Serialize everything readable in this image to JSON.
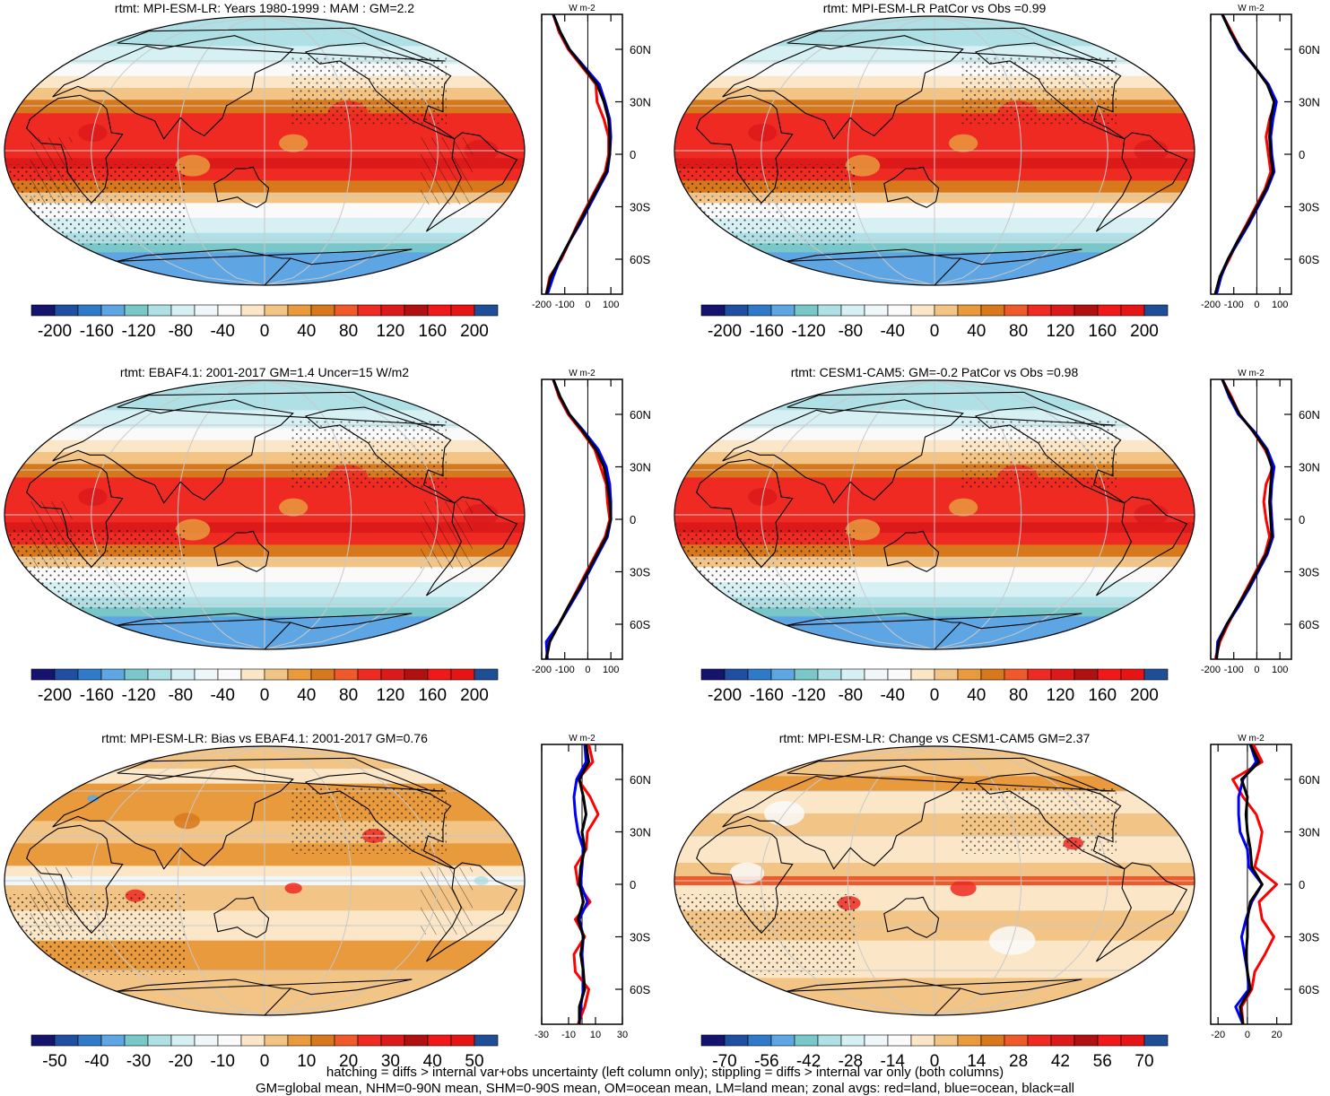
{
  "figure": {
    "footer_lines": [
      "hatching = diffs > internal var+obs uncertainty (left column only); stippling = diffs > internal var only (both columns)",
      "GM=global mean, NHM=0-90N mean, SHM=0-90S mean, OM=ocean mean, LM=land mean; zonal avgs: red=land, blue=ocean, black=all"
    ],
    "colors": {
      "land_line": "#ff0000",
      "ocean_line": "#0000ff",
      "all_line": "#000000",
      "graticule": "#c8c8c8"
    }
  },
  "chart_data": [
    {
      "type": "heatmap",
      "title": "rtmt: MPI-ESM-LR: Years 1980-1999 : MAM : GM=2.2",
      "map_style": "mean",
      "colorbar": {
        "tick_labels": [
          "-200",
          "-160",
          "-120",
          "-80",
          "-40",
          "0",
          "40",
          "80",
          "120",
          "160",
          "200"
        ]
      },
      "zonal": {
        "unit": "W m-2",
        "xlim": [
          -200,
          150
        ],
        "xticks": [
          "-200",
          "-100",
          "0",
          "100"
        ],
        "yticks": [
          "60N",
          "30N",
          "0",
          "30S",
          "60S"
        ],
        "lat": [
          80,
          70,
          60,
          50,
          40,
          30,
          20,
          10,
          0,
          -10,
          -20,
          -30,
          -40,
          -50,
          -60,
          -70,
          -80
        ],
        "all": [
          -150,
          -120,
          -80,
          -20,
          40,
          70,
          90,
          95,
          95,
          80,
          40,
          0,
          -40,
          -80,
          -120,
          -160,
          -180
        ],
        "land": [
          -150,
          -125,
          -85,
          -25,
          35,
          40,
          70,
          90,
          90,
          75,
          35,
          -5,
          -45,
          -80,
          -115,
          -165,
          -180
        ],
        "ocean": [
          -150,
          -120,
          -80,
          -15,
          50,
          75,
          95,
          100,
          95,
          85,
          45,
          5,
          -35,
          -80,
          -120,
          -150,
          -175
        ]
      }
    },
    {
      "type": "heatmap",
      "title": "rtmt: MPI-ESM-LR PatCor vs Obs =0.99",
      "map_style": "mean",
      "colorbar": {
        "tick_labels": [
          "-200",
          "-160",
          "-120",
          "-80",
          "-40",
          "0",
          "40",
          "80",
          "120",
          "160",
          "200"
        ]
      },
      "zonal": {
        "unit": "W m-2",
        "xlim": [
          -200,
          150
        ],
        "xticks": [
          "-200",
          "-100",
          "0",
          "100"
        ],
        "yticks": [
          "60N",
          "30N",
          "0",
          "30S",
          "60S"
        ],
        "lat": [
          80,
          70,
          60,
          50,
          40,
          30,
          20,
          10,
          0,
          -10,
          -20,
          -30,
          -40,
          -50,
          -60,
          -70,
          -80
        ],
        "all": [
          -150,
          -115,
          -70,
          -10,
          45,
          75,
          60,
          55,
          60,
          70,
          40,
          0,
          -40,
          -85,
          -125,
          -160,
          -180
        ],
        "land": [
          -150,
          -110,
          -70,
          -10,
          45,
          80,
          55,
          40,
          50,
          60,
          35,
          -5,
          -45,
          -85,
          -120,
          -160,
          -180
        ],
        "ocean": [
          -150,
          -115,
          -75,
          -10,
          50,
          85,
          70,
          60,
          65,
          75,
          45,
          5,
          -35,
          -80,
          -125,
          -155,
          -175
        ]
      }
    },
    {
      "type": "heatmap",
      "title": "rtmt: EBAF4.1: 2001-2017 GM=1.4 Uncer=15 W/m2",
      "map_style": "mean",
      "colorbar": {
        "tick_labels": [
          "-200",
          "-160",
          "-120",
          "-80",
          "-40",
          "0",
          "40",
          "80",
          "120",
          "160",
          "200"
        ]
      },
      "zonal": {
        "unit": "W m-2",
        "xlim": [
          -200,
          150
        ],
        "xticks": [
          "-200",
          "-100",
          "0",
          "100"
        ],
        "yticks": [
          "60N",
          "30N",
          "0",
          "30S",
          "60S"
        ],
        "lat": [
          80,
          70,
          60,
          50,
          40,
          30,
          20,
          10,
          0,
          -10,
          -20,
          -30,
          -40,
          -50,
          -60,
          -70,
          -80
        ],
        "all": [
          -150,
          -120,
          -80,
          -20,
          35,
          70,
          85,
          95,
          100,
          80,
          40,
          0,
          -40,
          -85,
          -125,
          -165,
          -180
        ],
        "land": [
          -150,
          -125,
          -85,
          -25,
          30,
          55,
          80,
          85,
          95,
          75,
          35,
          -5,
          -45,
          -85,
          -125,
          -170,
          -180
        ],
        "ocean": [
          -150,
          -120,
          -80,
          -15,
          45,
          80,
          95,
          100,
          100,
          85,
          45,
          5,
          -35,
          -80,
          -125,
          -180,
          -175
        ]
      }
    },
    {
      "type": "heatmap",
      "title": "rtmt: CESM1-CAM5: GM=-0.2 PatCor vs Obs =0.98",
      "map_style": "mean",
      "colorbar": {
        "tick_labels": [
          "-200",
          "-160",
          "-120",
          "-80",
          "-40",
          "0",
          "40",
          "80",
          "120",
          "160",
          "200"
        ]
      },
      "zonal": {
        "unit": "W m-2",
        "xlim": [
          -200,
          150
        ],
        "xticks": [
          "-200",
          "-100",
          "0",
          "100"
        ],
        "yticks": [
          "60N",
          "30N",
          "0",
          "30S",
          "60S"
        ],
        "lat": [
          80,
          70,
          60,
          50,
          40,
          30,
          20,
          10,
          0,
          -10,
          -20,
          -30,
          -40,
          -50,
          -60,
          -70,
          -80
        ],
        "all": [
          -150,
          -115,
          -75,
          -15,
          40,
          65,
          60,
          55,
          60,
          65,
          40,
          0,
          -40,
          -85,
          -130,
          -165,
          -175
        ],
        "land": [
          -150,
          -110,
          -75,
          -15,
          35,
          70,
          40,
          30,
          40,
          55,
          35,
          -5,
          -45,
          -85,
          -125,
          -160,
          -180
        ],
        "ocean": [
          -150,
          -120,
          -80,
          -10,
          45,
          75,
          65,
          60,
          65,
          70,
          45,
          5,
          -35,
          -80,
          -130,
          -170,
          -175
        ]
      }
    },
    {
      "type": "heatmap",
      "title": "rtmt: MPI-ESM-LR: Bias vs EBAF4.1: 2001-2017 GM=0.76",
      "map_style": "bias",
      "colorbar": {
        "tick_labels": [
          "-50",
          "-40",
          "-30",
          "-20",
          "-10",
          "0",
          "10",
          "20",
          "30",
          "40",
          "50"
        ]
      },
      "zonal": {
        "unit": "W m-2",
        "xlim": [
          -30,
          30
        ],
        "xticks": [
          "-30",
          "-10",
          "10",
          "30"
        ],
        "yticks": [
          "60N",
          "30N",
          "0",
          "30S",
          "60S"
        ],
        "lat": [
          80,
          70,
          60,
          50,
          40,
          30,
          20,
          10,
          0,
          -10,
          -20,
          -30,
          -40,
          -50,
          -60,
          -70,
          -80
        ],
        "all": [
          3,
          5,
          -2,
          1,
          3,
          0,
          2,
          -1,
          -2,
          1,
          -3,
          1,
          -1,
          1,
          2,
          -2,
          -2
        ],
        "land": [
          5,
          8,
          -3,
          6,
          12,
          4,
          3,
          -5,
          -3,
          6,
          -5,
          2,
          -6,
          -5,
          5,
          2,
          -3
        ],
        "ocean": [
          2,
          3,
          -4,
          -6,
          -5,
          -3,
          1,
          0,
          -1,
          4,
          -2,
          1,
          0,
          1,
          1,
          -1,
          -2
        ]
      }
    },
    {
      "type": "heatmap",
      "title": "rtmt: MPI-ESM-LR: Change vs CESM1-CAM5 GM=2.37",
      "map_style": "change",
      "colorbar": {
        "tick_labels": [
          "-70",
          "-56",
          "-42",
          "-28",
          "-14",
          "0",
          "14",
          "28",
          "42",
          "56",
          "70"
        ]
      },
      "zonal": {
        "unit": "W m-2",
        "xlim": [
          -25,
          30
        ],
        "xticks": [
          "-20",
          "0",
          "20"
        ],
        "yticks": [
          "60N",
          "30N",
          "0",
          "30S",
          "60S"
        ],
        "lat": [
          80,
          70,
          60,
          50,
          40,
          30,
          20,
          10,
          0,
          -10,
          -20,
          -30,
          -40,
          -50,
          -60,
          -70,
          -80
        ],
        "all": [
          2,
          8,
          -4,
          0,
          -1,
          0,
          2,
          3,
          10,
          2,
          0,
          0,
          -1,
          0,
          2,
          -5,
          -3
        ],
        "land": [
          4,
          10,
          -10,
          -3,
          6,
          10,
          8,
          5,
          20,
          8,
          10,
          18,
          12,
          5,
          3,
          -4,
          -3
        ],
        "ocean": [
          2,
          6,
          -3,
          -6,
          -6,
          -5,
          0,
          1,
          10,
          3,
          -1,
          -4,
          -2,
          0,
          1,
          -8,
          -3
        ]
      }
    }
  ]
}
